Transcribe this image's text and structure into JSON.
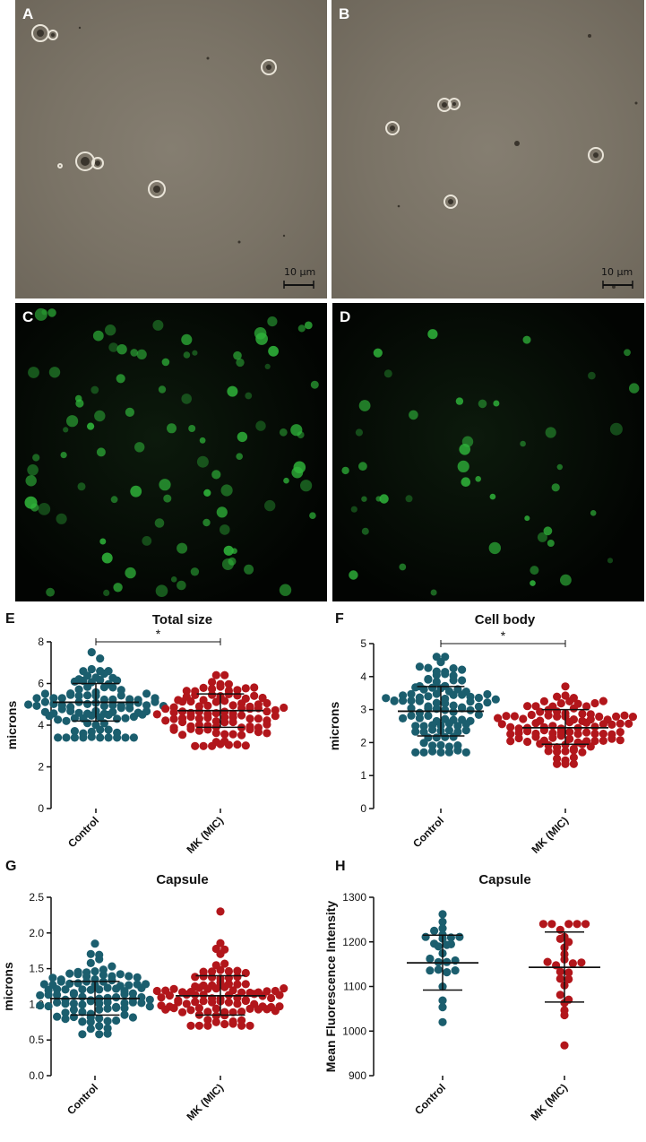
{
  "figure": {
    "micro_panels": [
      {
        "letter": "A",
        "scale_label": "10 µm"
      },
      {
        "letter": "B",
        "scale_label": "10 µm"
      }
    ],
    "fluo_panels": [
      {
        "letter": "C"
      },
      {
        "letter": "D"
      }
    ],
    "plot_letters": [
      "E",
      "F",
      "G",
      "H"
    ],
    "colors": {
      "control": "#1b5e6e",
      "mk": "#b2161b"
    }
  },
  "chart_data": [
    {
      "type": "scatter",
      "letter": "E",
      "title": "Total size",
      "ylabel": "microns",
      "categories": [
        "Control",
        "MK (MIC)"
      ],
      "ylim": [
        0,
        8
      ],
      "yticks": [
        0,
        2,
        4,
        6,
        8
      ],
      "n_points": [
        100,
        100
      ],
      "series": [
        {
          "name": "Control",
          "mean": 5.1,
          "sd_low": 4.2,
          "sd_high": 6.0,
          "min": 3.4,
          "max": 7.5
        },
        {
          "name": "MK (MIC)",
          "mean": 4.7,
          "sd_low": 3.9,
          "sd_high": 5.5,
          "min": 3.0,
          "max": 6.4
        }
      ],
      "significance": "*"
    },
    {
      "type": "scatter",
      "letter": "F",
      "title": "Cell body",
      "ylabel": "microns",
      "categories": [
        "Control",
        "MK (MIC)"
      ],
      "ylim": [
        0,
        5
      ],
      "yticks": [
        0,
        1,
        2,
        3,
        4,
        5
      ],
      "n_points": [
        100,
        100
      ],
      "series": [
        {
          "name": "Control",
          "mean": 2.95,
          "sd_low": 2.2,
          "sd_high": 3.7,
          "min": 1.7,
          "max": 4.6
        },
        {
          "name": "MK (MIC)",
          "mean": 2.45,
          "sd_low": 1.95,
          "sd_high": 3.0,
          "min": 1.35,
          "max": 3.7
        }
      ],
      "significance": "*"
    },
    {
      "type": "scatter",
      "letter": "G",
      "title": "Capsule",
      "ylabel": "microns",
      "categories": [
        "Control",
        "MK (MIC)"
      ],
      "ylim": [
        0,
        2.5
      ],
      "yticks": [
        "0.0",
        "0.5",
        "1.0",
        "1.5",
        "2.0",
        "2.5"
      ],
      "n_points": [
        100,
        100
      ],
      "series": [
        {
          "name": "Control",
          "mean": 1.08,
          "sd_low": 0.85,
          "sd_high": 1.32,
          "min": 0.58,
          "max": 1.85
        },
        {
          "name": "MK (MIC)",
          "mean": 1.12,
          "sd_low": 0.85,
          "sd_high": 1.4,
          "min": 0.7,
          "max": 2.3
        }
      ],
      "significance": ""
    },
    {
      "type": "scatter",
      "letter": "H",
      "title": "Capsule",
      "ylabel": "Mean Fluorescence Intensity",
      "categories": [
        "Control",
        "MK (MIC)"
      ],
      "ylim": [
        900,
        1300
      ],
      "yticks": [
        900,
        1000,
        1100,
        1200,
        1300
      ],
      "n_points": [
        26,
        27
      ],
      "series": [
        {
          "name": "Control",
          "mean": 1153,
          "sd_low": 1092,
          "sd_high": 1215,
          "min": 1020,
          "max": 1262
        },
        {
          "name": "MK (MIC)",
          "mean": 1143,
          "sd_low": 1065,
          "sd_high": 1222,
          "min": 968,
          "max": 1240
        }
      ],
      "significance": ""
    }
  ]
}
